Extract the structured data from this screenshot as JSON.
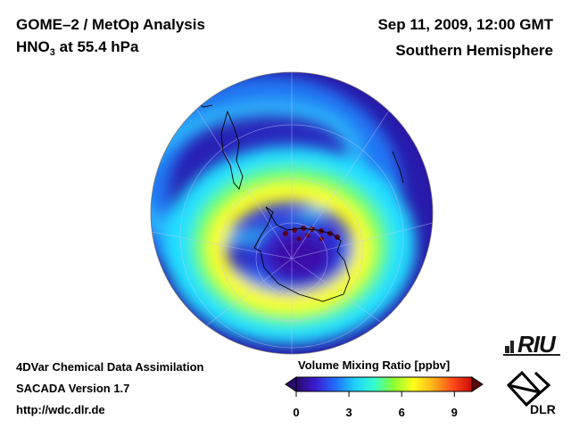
{
  "header": {
    "title_line1": "GOME–2 / MetOp Analysis",
    "title_line2_main": "HNO",
    "title_line2_sub": "3",
    "title_line2_rest": " at 55.4 hPa",
    "date": "Sep 11, 2009, 12:00 GMT",
    "region": "Southern Hemisphere"
  },
  "footer": {
    "line1": "4DVar Chemical Data Assimilation",
    "line2": "SACADA Version 1.7",
    "line3": "http://wdc.dlr.de"
  },
  "colorbar": {
    "title": "Volume Mixing Ratio [ppbv]",
    "min": 0,
    "max": 10,
    "ticks": [
      {
        "value": 0,
        "label": "0"
      },
      {
        "value": 3,
        "label": "3"
      },
      {
        "value": 6,
        "label": "6"
      },
      {
        "value": 9,
        "label": "9"
      }
    ],
    "colors": [
      "#2a0a6e",
      "#3a1cd0",
      "#1f6cff",
      "#1fd0ff",
      "#33ffcc",
      "#8cff33",
      "#ffff1a",
      "#ffb31a",
      "#ff4c1a",
      "#cc0a0a"
    ]
  },
  "logos": {
    "riu": "RIU",
    "dlr": "DLR"
  }
}
